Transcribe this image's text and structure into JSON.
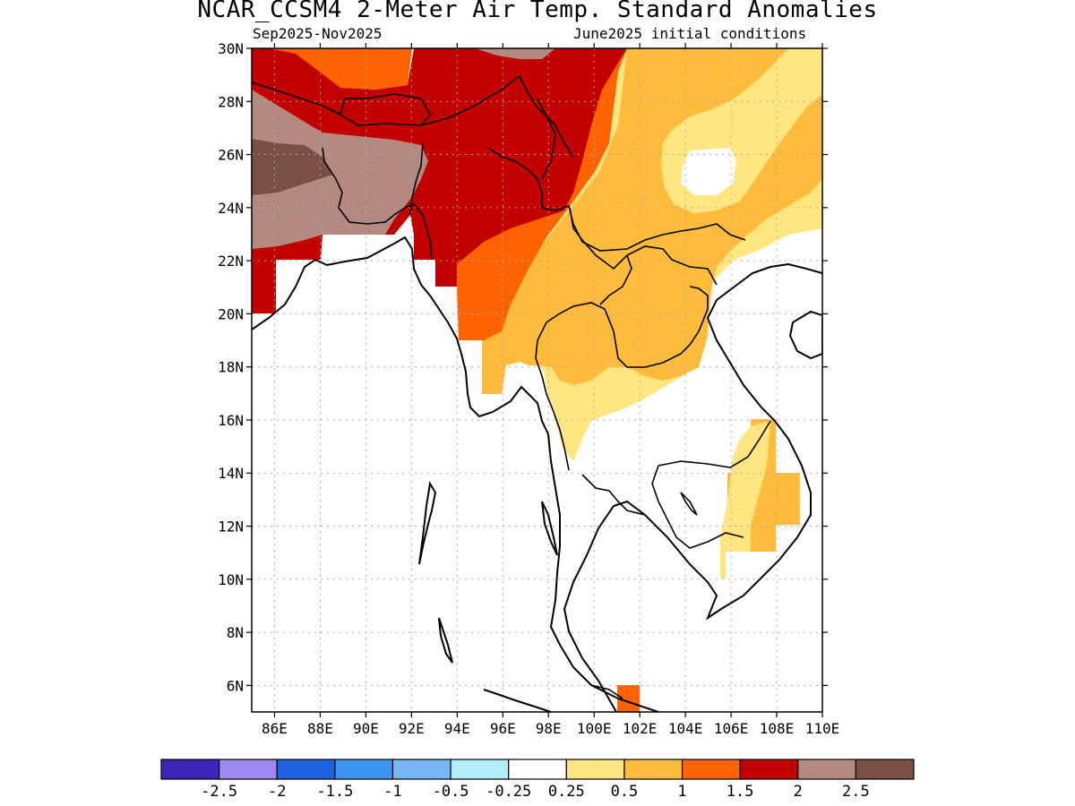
{
  "title": "NCAR_CCSM4 2-Meter Air Temp. Standard Anomalies",
  "subtitle_left": "Sep2025-Nov2025",
  "subtitle_right": "June2025 initial conditions",
  "map": {
    "lon_range": [
      85,
      110
    ],
    "lat_range": [
      5,
      30
    ],
    "grid": true,
    "lat_ticks": [
      {
        "value": 30,
        "label": "30N"
      },
      {
        "value": 28,
        "label": "28N"
      },
      {
        "value": 26,
        "label": "26N"
      },
      {
        "value": 24,
        "label": "24N"
      },
      {
        "value": 22,
        "label": "22N"
      },
      {
        "value": 20,
        "label": "20N"
      },
      {
        "value": 18,
        "label": "18N"
      },
      {
        "value": 16,
        "label": "16N"
      },
      {
        "value": 14,
        "label": "14N"
      },
      {
        "value": 12,
        "label": "12N"
      },
      {
        "value": 10,
        "label": "10N"
      },
      {
        "value": 8,
        "label": "8N"
      },
      {
        "value": 6,
        "label": "6N"
      }
    ],
    "lon_ticks": [
      {
        "value": 86,
        "label": "86E"
      },
      {
        "value": 88,
        "label": "88E"
      },
      {
        "value": 90,
        "label": "90E"
      },
      {
        "value": 92,
        "label": "92E"
      },
      {
        "value": 94,
        "label": "94E"
      },
      {
        "value": 96,
        "label": "96E"
      },
      {
        "value": 98,
        "label": "98E"
      },
      {
        "value": 100,
        "label": "100E"
      },
      {
        "value": 102,
        "label": "102E"
      },
      {
        "value": 104,
        "label": "104E"
      },
      {
        "value": 106,
        "label": "106E"
      },
      {
        "value": 108,
        "label": "108E"
      },
      {
        "value": 110,
        "label": "110E"
      }
    ]
  },
  "colorbar": {
    "colors": [
      "#3b26b8",
      "#9e88f2",
      "#1f62e0",
      "#3d95f0",
      "#78b6f6",
      "#b2eefa",
      "#ffffff",
      "#ffe680",
      "#ffbb3c",
      "#ff6200",
      "#c20000",
      "#b48a80",
      "#7a5044"
    ],
    "labels": [
      "-2.5",
      "-2",
      "-1.5",
      "-1",
      "-0.5",
      "-0.25",
      "0.25",
      "0.5",
      "1",
      "1.5",
      "2",
      "2.5"
    ]
  }
}
